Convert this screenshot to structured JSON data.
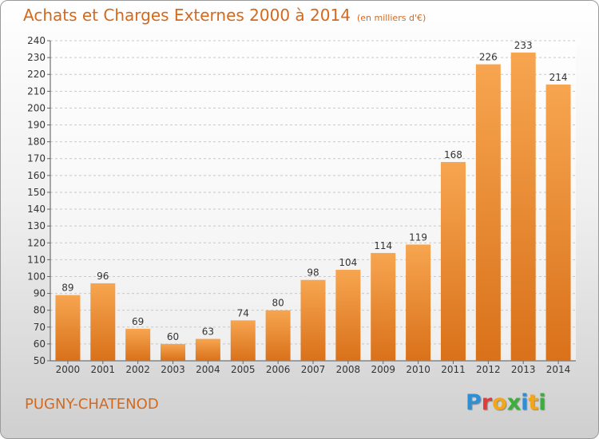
{
  "header": {
    "title": "Achats et Charges Externes 2000 à 2014",
    "subtitle": "(en milliers d'€)"
  },
  "footer": {
    "town": "PUGNY-CHATENOD",
    "logo_letters": [
      "P",
      "r",
      "o",
      "x",
      "i",
      "t",
      "i"
    ],
    "logo_colors": [
      "#2d8fd5",
      "#e33b3b",
      "#f2a71b",
      "#3cae3c",
      "#2d8fd5",
      "#f2a71b",
      "#3cae3c"
    ]
  },
  "colors": {
    "bar_light": "#f7a550",
    "bar_dark": "#d9711a",
    "title": "#d4691e",
    "grid": "#c8c8c8"
  },
  "chart_data": {
    "type": "bar",
    "categories": [
      "2000",
      "2001",
      "2002",
      "2003",
      "2004",
      "2005",
      "2006",
      "2007",
      "2008",
      "2009",
      "2010",
      "2011",
      "2012",
      "2013",
      "2014"
    ],
    "values": [
      89,
      96,
      69,
      60,
      63,
      74,
      80,
      98,
      104,
      114,
      119,
      168,
      226,
      233,
      214
    ],
    "title": "Achats et Charges Externes 2000 à 2014",
    "ylim": [
      50,
      240
    ],
    "yticks": [
      50,
      60,
      70,
      80,
      90,
      100,
      110,
      120,
      130,
      140,
      150,
      160,
      170,
      180,
      190,
      200,
      210,
      220,
      230,
      240
    ],
    "grid": true,
    "data_labels": true
  }
}
